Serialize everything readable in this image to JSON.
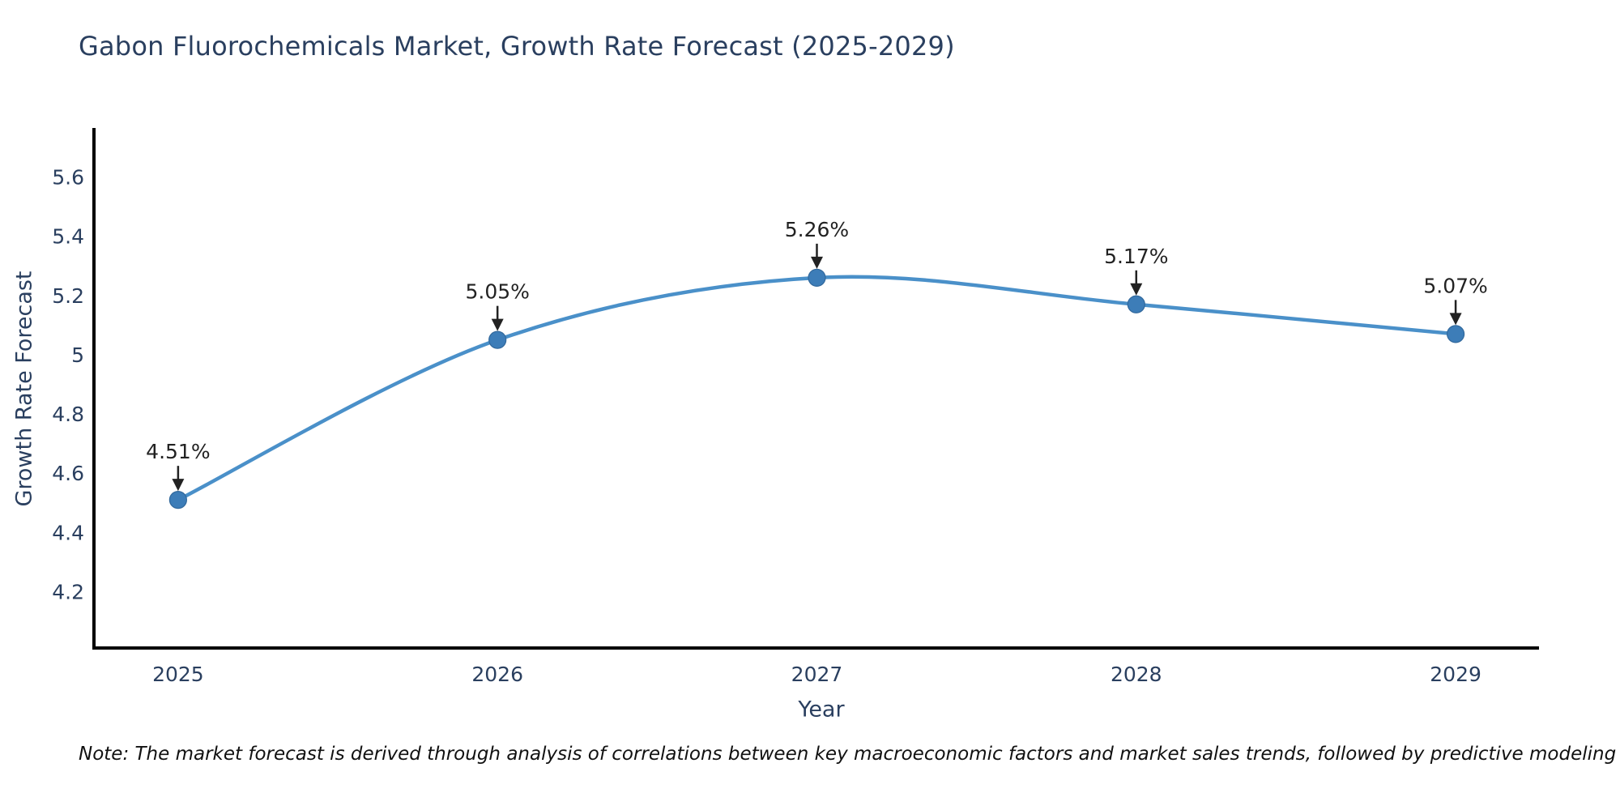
{
  "chart_data": {
    "type": "line",
    "title": "Gabon Fluorochemicals Market, Growth Rate Forecast (2025-2029)",
    "xlabel": "Year",
    "ylabel": "Growth Rate Forecast",
    "x": [
      2025,
      2026,
      2027,
      2028,
      2029
    ],
    "y": [
      4.51,
      5.05,
      5.26,
      5.17,
      5.07
    ],
    "point_labels": [
      "4.51%",
      "5.05%",
      "5.26%",
      "5.17%",
      "5.07%"
    ],
    "xtick_labels": [
      "2025",
      "2026",
      "2027",
      "2028",
      "2029"
    ],
    "yticks": [
      4.2,
      4.4,
      4.6,
      4.8,
      5,
      5.2,
      5.4,
      5.6
    ],
    "ytick_labels": [
      "4.2",
      "4.4",
      "4.6",
      "4.8",
      "5",
      "5.2",
      "5.4",
      "5.6"
    ],
    "xlim": [
      2024.734,
      2029.261
    ],
    "ylim": [
      4.01,
      5.76
    ],
    "grid": false,
    "legend": "none",
    "line_shape": "spline",
    "note": "Note: The market forecast is derived through analysis of correlations between key macroeconomic factors and market sales trends, followed by predictive modeling to project future sales"
  },
  "colors": {
    "background": "#ffffff",
    "title_text": "#2a3f5f",
    "tick_text": "#2a3f5f",
    "axis_line": "#000000",
    "line": "#4a90c9",
    "marker_fill": "#3d7db8",
    "marker_edge": "#31689c",
    "annotation": "#222222",
    "note_text": "#111111"
  }
}
